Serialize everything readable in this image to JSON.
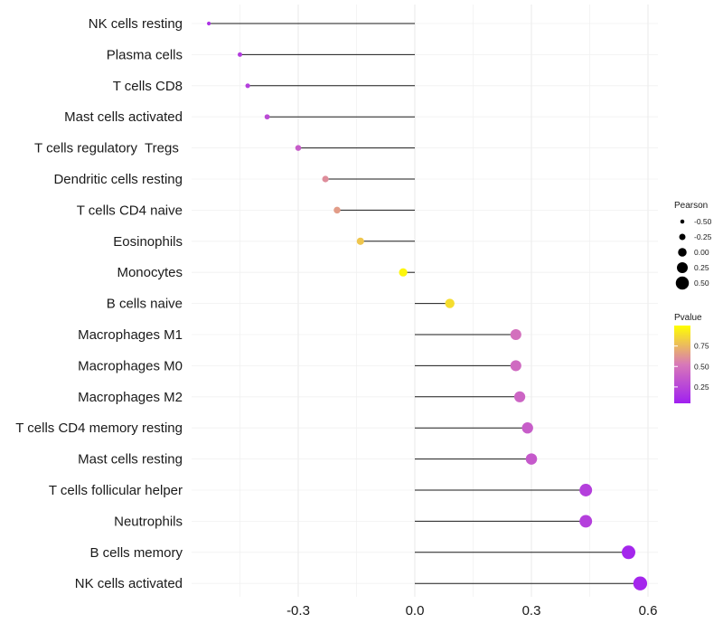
{
  "chart_data": {
    "type": "lollipop",
    "categories": [
      "NK cells resting",
      "Plasma cells",
      "T cells CD8",
      "Mast cells activated",
      "T cells regulatory  Tregs ",
      "Dendritic cells resting",
      "T cells CD4 naive",
      "Eosinophils",
      "Monocytes",
      "B cells naive",
      "Macrophages M1",
      "Macrophages M0",
      "Macrophages M2",
      "T cells CD4 memory resting",
      "Mast cells resting",
      "T cells follicular helper",
      "Neutrophils",
      "B cells memory",
      "NK cells activated"
    ],
    "pearson": [
      -0.53,
      -0.45,
      -0.43,
      -0.38,
      -0.3,
      -0.23,
      -0.2,
      -0.14,
      -0.03,
      0.09,
      0.26,
      0.26,
      0.27,
      0.29,
      0.3,
      0.44,
      0.44,
      0.55,
      0.58
    ],
    "pvalue": [
      0.15,
      0.2,
      0.22,
      0.28,
      0.38,
      0.6,
      0.65,
      0.8,
      0.97,
      0.88,
      0.48,
      0.45,
      0.42,
      0.38,
      0.36,
      0.22,
      0.22,
      0.08,
      0.08
    ],
    "xticks": [
      -0.3,
      0.0,
      0.3,
      0.6
    ],
    "xtick_labels": [
      "-0.3",
      "0.0",
      "0.3",
      "0.6"
    ],
    "xlim": [
      -0.6,
      0.63
    ],
    "xlabel": "",
    "ylabel": "",
    "legend_size": {
      "title": "Pearson",
      "values": [
        -0.5,
        -0.25,
        0.0,
        0.25,
        0.5
      ],
      "labels": [
        "-0.50",
        "-0.25",
        "0.00",
        "0.25",
        "0.50"
      ]
    },
    "legend_color": {
      "title": "Pvalue",
      "values": [
        0.75,
        0.5,
        0.25
      ],
      "labels": [
        "0.75",
        "0.50",
        "0.25"
      ],
      "range": [
        0.05,
        1.0
      ],
      "low_color": "#a020f0",
      "mid_color": "#d878b8",
      "high_color": "#ffff00"
    },
    "grid": true,
    "legend_position": "right"
  }
}
